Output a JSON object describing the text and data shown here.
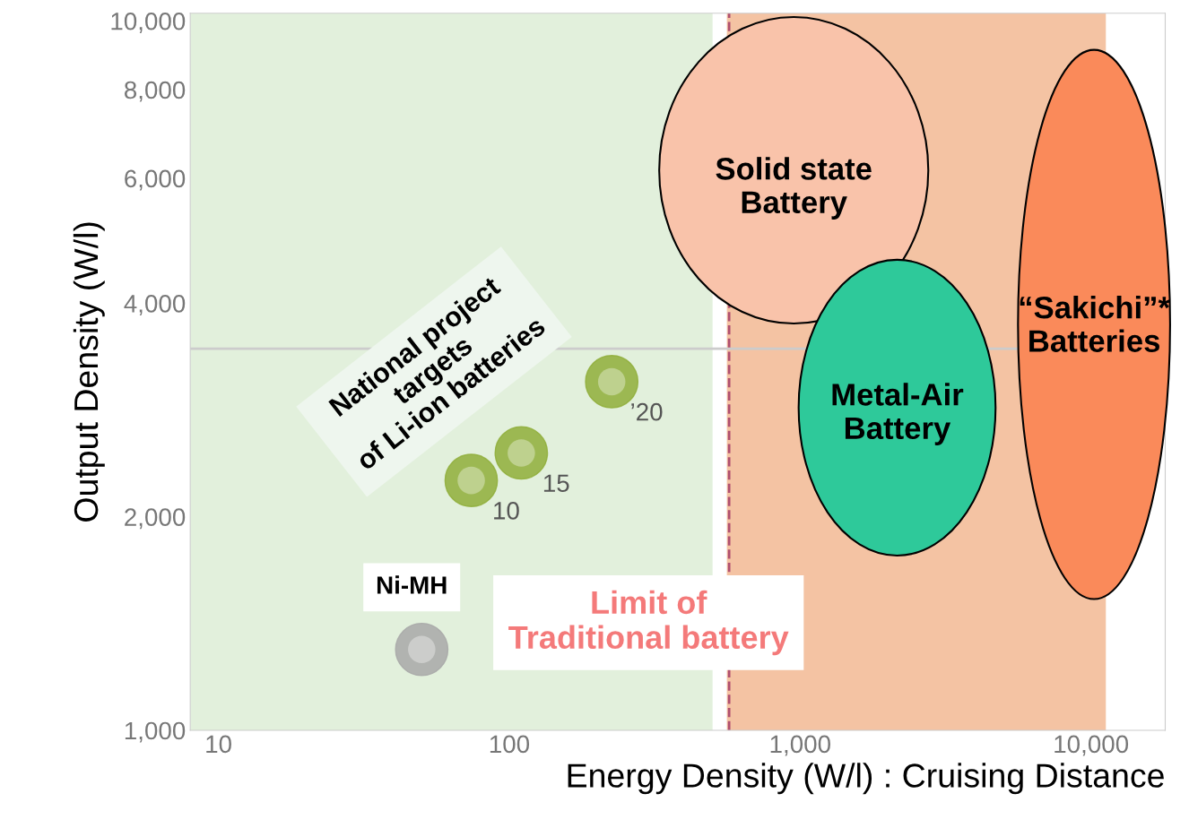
{
  "chart_data": {
    "type": "scatter",
    "xlabel": "Energy Density (W/l) : Cruising Distance",
    "ylabel": "Output Density (W/l)",
    "log": "xy",
    "xlim": [
      8,
      18000
    ],
    "ylim": [
      1000,
      10250
    ],
    "xticks": [
      10,
      100,
      {
        "value": 1000,
        "label": "1,000"
      },
      {
        "value": 10000,
        "label": "10,000"
      }
    ],
    "yticks": [
      {
        "value": 1000,
        "label": "1,000"
      },
      {
        "value": 2000,
        "label": "2,000"
      },
      {
        "value": 4000,
        "label": "4,000"
      },
      {
        "value": 6000,
        "label": "6,000"
      },
      {
        "value": 8000,
        "label": "8,000"
      },
      {
        "value": 10000,
        "label": "10,000"
      }
    ],
    "grid": false,
    "legend": false,
    "marker": "circle",
    "series": [
      {
        "color": "#a8a8a8",
        "x": [
          50
        ],
        "values": [
          1300
        ]
      },
      {
        "color": "#8fae3a",
        "x": [
          74,
          110,
          225
        ],
        "values": [
          2250,
          2460,
          3100
        ]
      }
    ],
    "bands": [
      {
        "axis": "x",
        "from": 8,
        "to": 500,
        "color": "#e2f0dc"
      },
      {
        "axis": "x",
        "from": 560,
        "to": 11250,
        "color": "#f4c3a3"
      }
    ],
    "ref_lines": [
      {
        "axis": "x",
        "value": 570,
        "color": "#b05070",
        "line_style": "dashed"
      },
      {
        "axis": "y",
        "value": 3450,
        "color": "#cccccc",
        "line_style": "solid"
      }
    ],
    "annotations": [
      "National project\ntargets\nof Li-ion batteries",
      "Limit of\nTraditional battery",
      "Solid state\nBattery",
      "Metal-Air\nBattery",
      "“Sakichi”*\nBatteries",
      {
        "text": "Ni-MH",
        "x": 50,
        "y": 1300
      },
      {
        "text": "10",
        "x": 74,
        "y": 2250
      },
      {
        "text": "15",
        "x": 110,
        "y": 2460
      },
      {
        "text": "’20",
        "x": 225,
        "y": 3100
      }
    ]
  }
}
